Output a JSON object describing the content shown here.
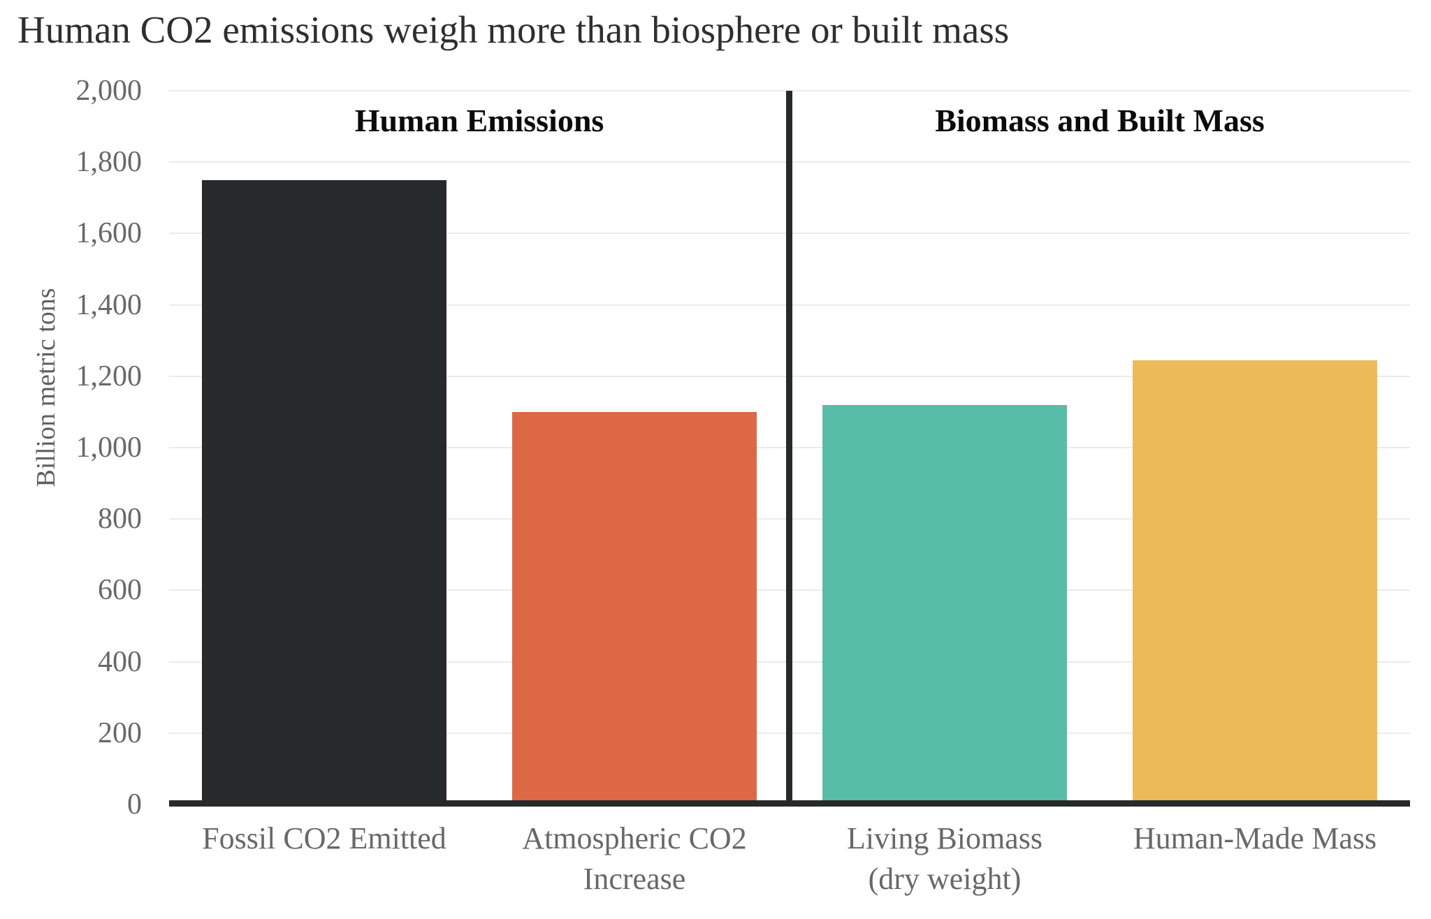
{
  "title": "Human CO2 emissions weigh more than biosphere or built mass",
  "chart_data": {
    "type": "bar",
    "title": "Human CO2 emissions weigh more than biosphere or built mass",
    "xlabel": "",
    "ylabel": "Billion metric tons",
    "ylim": [
      0,
      2000
    ],
    "ytick_step": 200,
    "ytick_labels": [
      "0",
      "200",
      "400",
      "600",
      "800",
      "1,000",
      "1,200",
      "1,400",
      "1,600",
      "1,800",
      "2,000"
    ],
    "grid": "horizontal",
    "legend": "none",
    "groups": [
      {
        "label": "Human Emissions",
        "bars": [
          {
            "category": "Fossil CO2 Emitted",
            "value": 1750,
            "color": "#262a2b"
          },
          {
            "category": "Atmospheric CO2\nIncrease",
            "value": 1100,
            "color": "#dc6845"
          }
        ]
      },
      {
        "label": "Biomass and Built Mass",
        "bars": [
          {
            "category": "Living Biomass\n(dry weight)",
            "value": 1120,
            "color": "#58bda6"
          },
          {
            "category": "Human-Made Mass",
            "value": 1245,
            "color": "#ecba58"
          }
        ]
      }
    ],
    "colors": {
      "axis": "#27292b",
      "gridline": "#ebebeb",
      "tick_label": "#686868",
      "title": "#2e2e2e",
      "section_header": "#0b0b0b"
    }
  }
}
